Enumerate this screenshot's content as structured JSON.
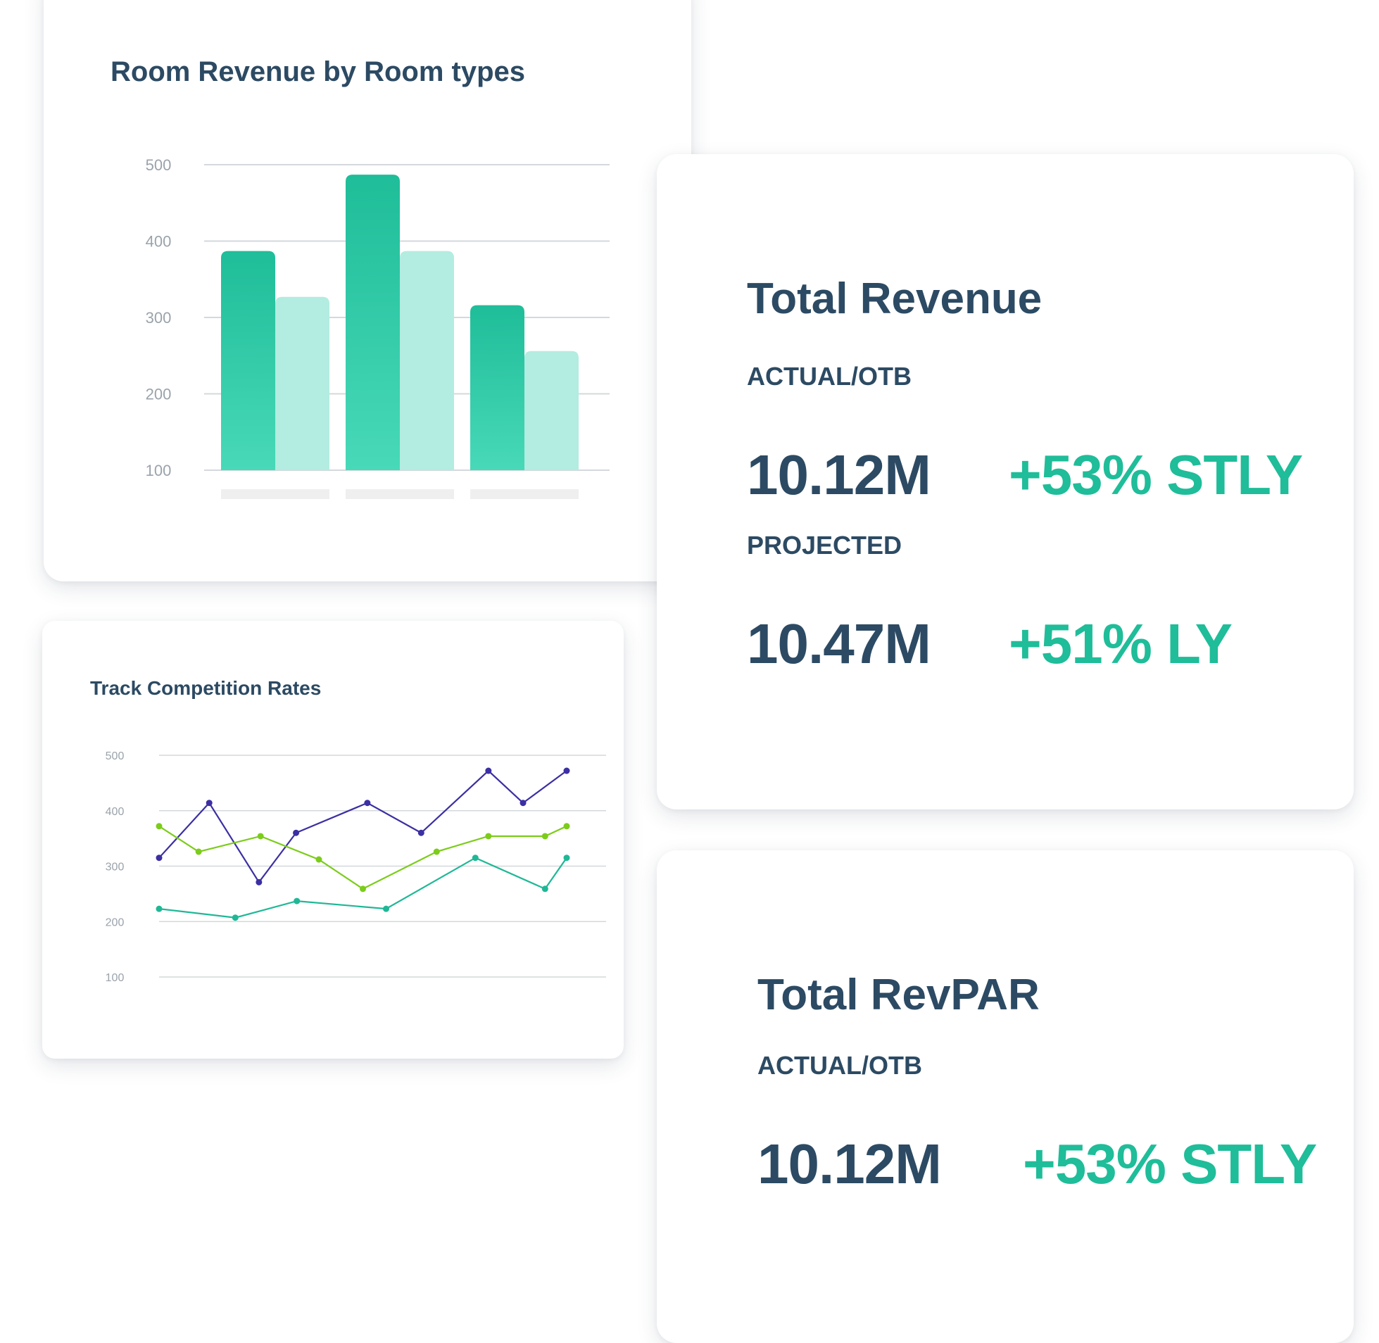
{
  "room_revenue_card": {
    "title": "Room Revenue by Room types"
  },
  "competition_card": {
    "title": "Track Competition Rates"
  },
  "total_revenue": {
    "title": "Total Revenue",
    "actual_label": "ACTUAL/OTB",
    "actual_value": "10.12M",
    "actual_change": "+53% STLY",
    "projected_label": "PROJECTED",
    "projected_value": "10.47M",
    "projected_change": "+51% LY"
  },
  "total_revpar": {
    "title": "Total RevPAR",
    "actual_label": "ACTUAL/OTB",
    "actual_value": "10.12M",
    "actual_change": "+53% STLY"
  },
  "colors": {
    "primary_text": "#2c4a63",
    "accent_green": "#1fbd99",
    "bar_dark": "#1fbd99",
    "bar_light": "#b3ece0",
    "line_purple": "#3b2fa3",
    "line_lime": "#7ccc1a",
    "line_teal": "#1fb896"
  },
  "chart_data": [
    {
      "type": "bar",
      "title": "Room Revenue by Room types",
      "y_ticks": [
        "500",
        "400",
        "300",
        "200",
        "100"
      ],
      "ylim": [
        100,
        500
      ],
      "grid": true,
      "categories": [
        "",
        "",
        ""
      ],
      "series": [
        {
          "values": [
            387,
            487,
            316
          ]
        },
        {
          "values": [
            327,
            387,
            256
          ]
        }
      ]
    },
    {
      "type": "line",
      "title": "Track Competition Rates",
      "y_ticks": [
        "500",
        "400",
        "300",
        "200",
        "100"
      ],
      "ylim": [
        100,
        500
      ],
      "grid": true,
      "x": [
        0.0,
        0.123,
        0.245,
        0.336,
        0.385,
        0.478,
        0.511,
        0.627,
        0.684,
        0.743,
        0.801,
        0.866,
        0.943,
        1.0
      ],
      "series": [
        {
          "points": [
            [
              0.0,
              315
            ],
            [
              0.123,
              414
            ],
            [
              0.245,
              271
            ],
            [
              0.336,
              360
            ],
            [
              0.511,
              414
            ],
            [
              0.643,
              360
            ],
            [
              0.808,
              472
            ],
            [
              0.893,
              414
            ],
            [
              1.0,
              472
            ]
          ]
        },
        {
          "points": [
            [
              0.0,
              372
            ],
            [
              0.097,
              326
            ],
            [
              0.249,
              354
            ],
            [
              0.392,
              312
            ],
            [
              0.5,
              259
            ],
            [
              0.681,
              326
            ],
            [
              0.808,
              354
            ],
            [
              0.947,
              354
            ],
            [
              1.0,
              372
            ]
          ]
        },
        {
          "points": [
            [
              0.0,
              223
            ],
            [
              0.187,
              207
            ],
            [
              0.338,
              237
            ],
            [
              0.557,
              223
            ],
            [
              0.776,
              315
            ],
            [
              0.947,
              259
            ],
            [
              1.0,
              315
            ]
          ]
        }
      ]
    }
  ]
}
